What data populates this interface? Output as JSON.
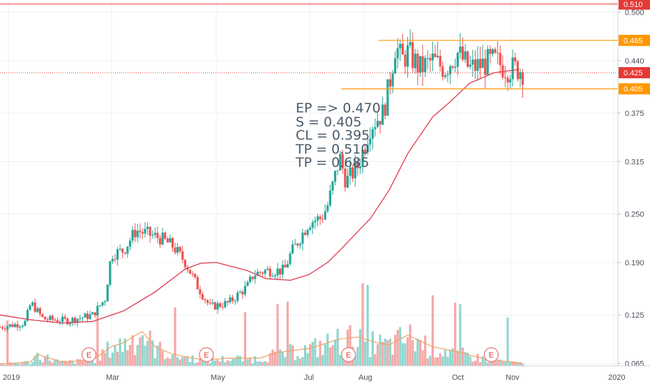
{
  "chart_data": {
    "type": "candlestick",
    "x_ticks": [
      "2019",
      "Mar",
      "May",
      "Jul",
      "Aug",
      "Oct",
      "Nov",
      "2020"
    ],
    "y_ticks": [
      0.065,
      0.125,
      0.19,
      0.25,
      0.315,
      0.375,
      0.44,
      0.5
    ],
    "ylim": [
      0.062,
      0.515
    ],
    "grid": true,
    "price_lines": [
      {
        "value": 0.51,
        "label": "0.510",
        "style": "solid",
        "color": "#e53935"
      },
      {
        "value": 0.425,
        "label": "0.425",
        "style": "dotted",
        "color": "#e53935"
      }
    ],
    "horizontal_levels": [
      {
        "value": 0.465,
        "label": "0.465",
        "from_x": 0.612,
        "color": "#ff9800"
      },
      {
        "value": 0.405,
        "label": "0.405",
        "from_x": 0.552,
        "color": "#ff9800"
      }
    ],
    "annotations": [
      "EP => 0.470",
      "S = 0.405",
      "CL = 0.395",
      "TP = 0.510",
      "TP = 0.685"
    ],
    "earnings_markers": {
      "label": "E",
      "x": [
        0.144,
        0.334,
        0.564,
        0.795
      ]
    },
    "series": [
      {
        "name": "",
        "type": "moving-average",
        "color": "#e0455a",
        "x": [
          0.0,
          0.05,
          0.1,
          0.15,
          0.2,
          0.25,
          0.3,
          0.325,
          0.35,
          0.4,
          0.43,
          0.47,
          0.5,
          0.53,
          0.55,
          0.6,
          0.63,
          0.66,
          0.7,
          0.73,
          0.76,
          0.8,
          0.84
        ],
        "y": [
          0.125,
          0.119,
          0.115,
          0.117,
          0.13,
          0.153,
          0.182,
          0.189,
          0.19,
          0.18,
          0.17,
          0.168,
          0.175,
          0.19,
          0.205,
          0.245,
          0.28,
          0.325,
          0.37,
          0.39,
          0.412,
          0.425,
          0.429
        ]
      }
    ],
    "ohlc_path": {
      "x": [
        0.0,
        0.04,
        0.05,
        0.07,
        0.11,
        0.15,
        0.17,
        0.18,
        0.2,
        0.22,
        0.24,
        0.26,
        0.28,
        0.3,
        0.32,
        0.34,
        0.37,
        0.4,
        0.41,
        0.43,
        0.46,
        0.47,
        0.5,
        0.52,
        0.53,
        0.55,
        0.56,
        0.57,
        0.58,
        0.6,
        0.62,
        0.63,
        0.64,
        0.65,
        0.66,
        0.68,
        0.7,
        0.72,
        0.74,
        0.76,
        0.78,
        0.8,
        0.82,
        0.84,
        0.85
      ],
      "y": [
        0.11,
        0.115,
        0.14,
        0.12,
        0.118,
        0.125,
        0.145,
        0.2,
        0.205,
        0.23,
        0.225,
        0.22,
        0.21,
        0.19,
        0.16,
        0.135,
        0.14,
        0.16,
        0.175,
        0.18,
        0.18,
        0.2,
        0.24,
        0.245,
        0.26,
        0.32,
        0.29,
        0.3,
        0.31,
        0.36,
        0.375,
        0.41,
        0.46,
        0.44,
        0.45,
        0.43,
        0.44,
        0.43,
        0.45,
        0.43,
        0.435,
        0.44,
        0.43,
        0.43,
        0.425
      ]
    },
    "volume_profile": {
      "x": [
        0.0,
        0.05,
        0.06,
        0.1,
        0.15,
        0.18,
        0.2,
        0.23,
        0.25,
        0.28,
        0.33,
        0.37,
        0.42,
        0.45,
        0.5,
        0.55,
        0.58,
        0.61,
        0.63,
        0.66,
        0.7,
        0.73,
        0.78,
        0.85
      ],
      "level": [
        0.05,
        0.1,
        0.3,
        0.1,
        0.15,
        0.5,
        0.6,
        0.9,
        0.5,
        0.3,
        0.15,
        0.2,
        0.2,
        0.35,
        0.45,
        0.7,
        0.75,
        0.6,
        0.55,
        0.8,
        0.5,
        0.4,
        0.2,
        0.05
      ]
    }
  }
}
